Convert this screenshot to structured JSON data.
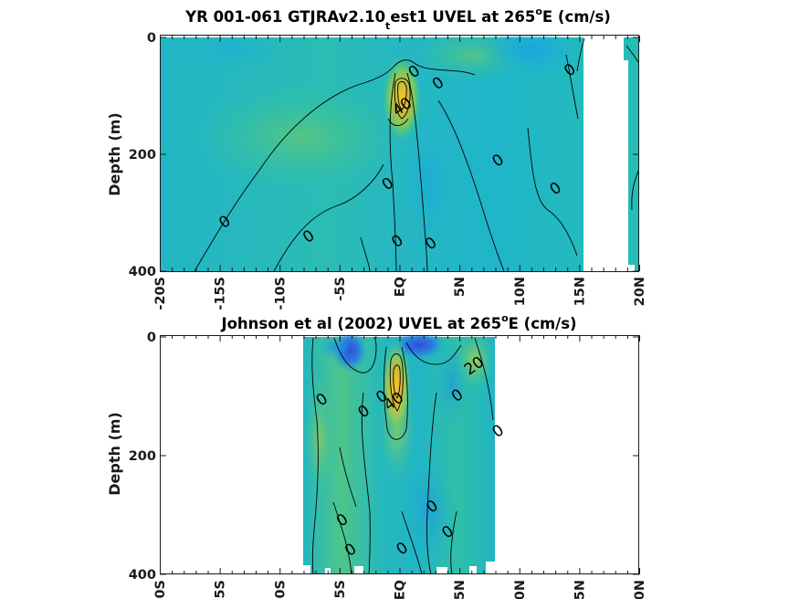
{
  "chart_data": [
    {
      "type": "heatmap",
      "title_main": "YR 001-061 GTJRAv2.10",
      "title_sub": "t",
      "title_rest": "est1 UVEL at 265",
      "title_sup": "o",
      "title_end": "E (cm/s)",
      "ylabel": "Depth (m)",
      "xlim": [
        -20,
        20
      ],
      "ylim": [
        0,
        400
      ],
      "x_ticks": [
        {
          "v": -20,
          "label": "-20S"
        },
        {
          "v": -15,
          "label": "-15S"
        },
        {
          "v": -10,
          "label": "-10S"
        },
        {
          "v": -5,
          "label": "-5S"
        },
        {
          "v": 0,
          "label": "EQ"
        },
        {
          "v": 5,
          "label": "5N"
        },
        {
          "v": 10,
          "label": "10N"
        },
        {
          "v": 15,
          "label": "15N"
        },
        {
          "v": 20,
          "label": "20N"
        }
      ],
      "y_ticks": [
        {
          "v": 0,
          "label": "0"
        },
        {
          "v": 200,
          "label": "200"
        },
        {
          "v": 400,
          "label": "400"
        }
      ],
      "contour_labels": [
        {
          "x": 1.2,
          "y": 58,
          "text": "0"
        },
        {
          "x": 3.2,
          "y": 78,
          "text": "0"
        },
        {
          "x": 14.2,
          "y": 55,
          "text": "0"
        },
        {
          "x": 0.2,
          "y": 118,
          "text": "40"
        },
        {
          "x": 8.2,
          "y": 210,
          "text": "0"
        },
        {
          "x": -1.0,
          "y": 250,
          "text": "0"
        },
        {
          "x": 13.0,
          "y": 258,
          "text": "0"
        },
        {
          "x": -14.6,
          "y": 315,
          "text": "0"
        },
        {
          "x": -7.6,
          "y": 340,
          "text": "0"
        },
        {
          "x": -0.2,
          "y": 348,
          "text": "0"
        },
        {
          "x": 2.6,
          "y": 352,
          "text": "0"
        }
      ],
      "features": [
        {
          "name": "equatorial undercurrent core",
          "lat": 0.3,
          "depth": 80,
          "max_speed": 60
        },
        {
          "name": "surface westward flow",
          "lat": 10,
          "depth": 10,
          "speed": -20
        }
      ],
      "missing_regions": [
        {
          "lat_range": [
            15.5,
            19.8
          ],
          "depth_range": [
            0,
            400
          ]
        }
      ],
      "colorscale": [
        "#2f4ed6",
        "#1e93e6",
        "#18b5cf",
        "#2ec29e",
        "#76c964",
        "#d6b83a",
        "#f8c62a"
      ],
      "clim": [
        -40,
        60
      ]
    },
    {
      "type": "heatmap",
      "title_main": "Johnson et al (2002) UVEL at 265",
      "title_sup": "o",
      "title_end": "E (cm/s)",
      "ylabel": "Depth (m)",
      "xlim": [
        -20,
        20
      ],
      "ylim": [
        0,
        400
      ],
      "x_ticks": [
        {
          "v": -20,
          "label": "-20S"
        },
        {
          "v": -15,
          "label": "-15S"
        },
        {
          "v": -10,
          "label": "-10S"
        },
        {
          "v": -5,
          "label": "-5S"
        },
        {
          "v": 0,
          "label": "EQ"
        },
        {
          "v": 5,
          "label": "5N"
        },
        {
          "v": 10,
          "label": "10N"
        },
        {
          "v": 15,
          "label": "15N"
        },
        {
          "v": 20,
          "label": "20N"
        }
      ],
      "y_ticks": [
        {
          "v": 0,
          "label": "0"
        },
        {
          "v": 200,
          "label": "200"
        },
        {
          "v": 400,
          "label": "400"
        }
      ],
      "contour_labels": [
        {
          "x": 6.2,
          "y": 48,
          "text": "20"
        },
        {
          "x": -6.5,
          "y": 105,
          "text": "0"
        },
        {
          "x": -1.5,
          "y": 100,
          "text": "0"
        },
        {
          "x": -0.5,
          "y": 108,
          "text": "40"
        },
        {
          "x": -3.0,
          "y": 125,
          "text": "0"
        },
        {
          "x": 4.8,
          "y": 98,
          "text": "0"
        },
        {
          "x": 8.2,
          "y": 158,
          "text": "0"
        },
        {
          "x": 2.7,
          "y": 285,
          "text": "0"
        },
        {
          "x": -4.8,
          "y": 308,
          "text": "0"
        },
        {
          "x": 4.0,
          "y": 328,
          "text": "0"
        },
        {
          "x": -4.1,
          "y": 358,
          "text": "0"
        },
        {
          "x": 0.2,
          "y": 356,
          "text": "0"
        }
      ],
      "features": [
        {
          "name": "equatorial undercurrent core",
          "lat": 0,
          "depth": 70,
          "max_speed": 60
        },
        {
          "name": "surface westward flow",
          "lat": -1,
          "depth": 15,
          "speed": -40
        },
        {
          "name": "surface westward flow",
          "lat": 2,
          "depth": 5,
          "speed": -40
        }
      ],
      "data_lat_range": [
        -8,
        8.3
      ],
      "colorscale": [
        "#2f4ed6",
        "#1e93e6",
        "#18b5cf",
        "#2ec29e",
        "#76c964",
        "#d6b83a",
        "#f8c62a"
      ],
      "clim": [
        -40,
        60
      ]
    }
  ]
}
